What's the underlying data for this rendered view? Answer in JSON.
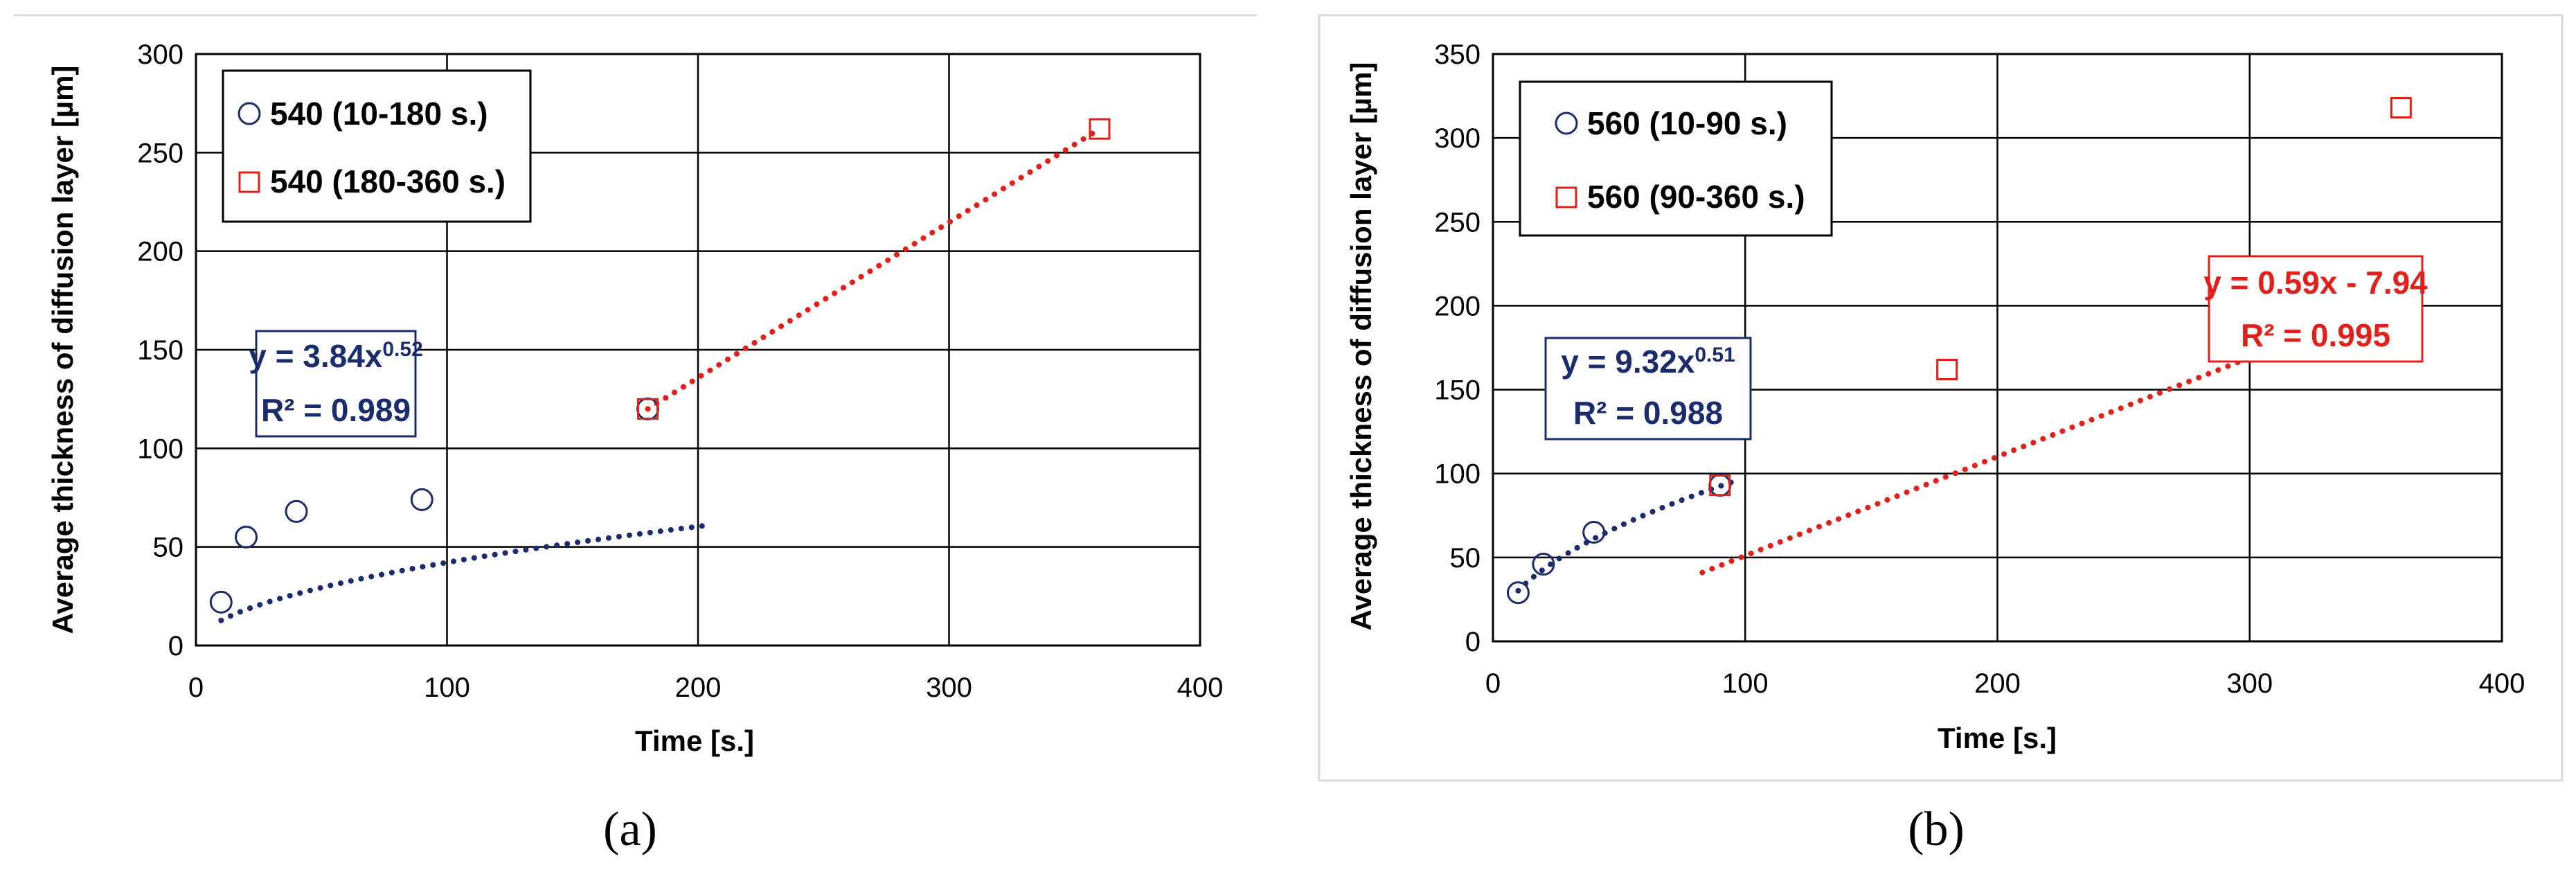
{
  "chart_data": [
    {
      "type": "scatter",
      "panel_label": "(a)",
      "xlabel": "Time [s.]",
      "ylabel": "Average thickness of diffusion layer  [µm]",
      "xlim": [
        0,
        400
      ],
      "ylim": [
        0,
        300
      ],
      "xticks": [
        0,
        100,
        200,
        300,
        400
      ],
      "yticks": [
        0,
        50,
        100,
        150,
        200,
        250,
        300
      ],
      "grid": true,
      "legend_position": "top-left",
      "series": [
        {
          "name": "540 (10-180 s.)",
          "marker": "circle",
          "color": "#1a2c6b",
          "x": [
            10,
            20,
            40,
            90,
            180
          ],
          "y": [
            22,
            55,
            68,
            74,
            120
          ],
          "trendline": {
            "type": "power",
            "a": 3.84,
            "b": 0.52,
            "x_range": [
              10,
              205
            ]
          }
        },
        {
          "name": "540 (180-360 s.)",
          "marker": "square",
          "color": "#e0201b",
          "x": [
            180,
            360
          ],
          "y": [
            120,
            262
          ],
          "trendline": {
            "type": "linear",
            "x_range": [
              180,
              360
            ],
            "y_range": [
              120,
              262
            ]
          }
        }
      ],
      "annotations": [
        {
          "series_index": 0,
          "equation": "y = 3.84x",
          "exponent": "0.52",
          "r2": "R² = 0.989",
          "color": "#1a2c6b"
        }
      ]
    },
    {
      "type": "scatter",
      "panel_label": "(b)",
      "xlabel": "Time [s.]",
      "ylabel": "Average thickness of diffusion layer  [µm]",
      "xlim": [
        0,
        400
      ],
      "ylim": [
        0,
        350
      ],
      "xticks": [
        0,
        100,
        200,
        300,
        400
      ],
      "yticks": [
        0,
        50,
        100,
        150,
        200,
        250,
        300,
        350
      ],
      "grid": true,
      "legend_position": "top-left",
      "series": [
        {
          "name": "560 (10-90 s.)",
          "marker": "circle",
          "color": "#1a2c6b",
          "x": [
            10,
            20,
            40,
            90
          ],
          "y": [
            29,
            46,
            65,
            93
          ],
          "trendline": {
            "type": "power",
            "a": 9.32,
            "b": 0.51,
            "x_range": [
              10,
              97
            ]
          }
        },
        {
          "name": "560 (90-360 s.)",
          "marker": "square",
          "color": "#e0201b",
          "x": [
            90,
            180,
            360
          ],
          "y": [
            93,
            162,
            318
          ],
          "trendline": {
            "type": "linear",
            "m": 0.59,
            "c": -7.94,
            "x_range": [
              83,
              360
            ]
          }
        }
      ],
      "annotations": [
        {
          "series_index": 0,
          "equation": "y = 9.32x",
          "exponent": "0.51",
          "r2": "R² = 0.988",
          "color": "#1a2c6b"
        },
        {
          "series_index": 1,
          "equation": "y = 0.59x - 7.94",
          "exponent": "",
          "r2": "R² = 0.995",
          "color": "#e0201b"
        }
      ]
    }
  ]
}
